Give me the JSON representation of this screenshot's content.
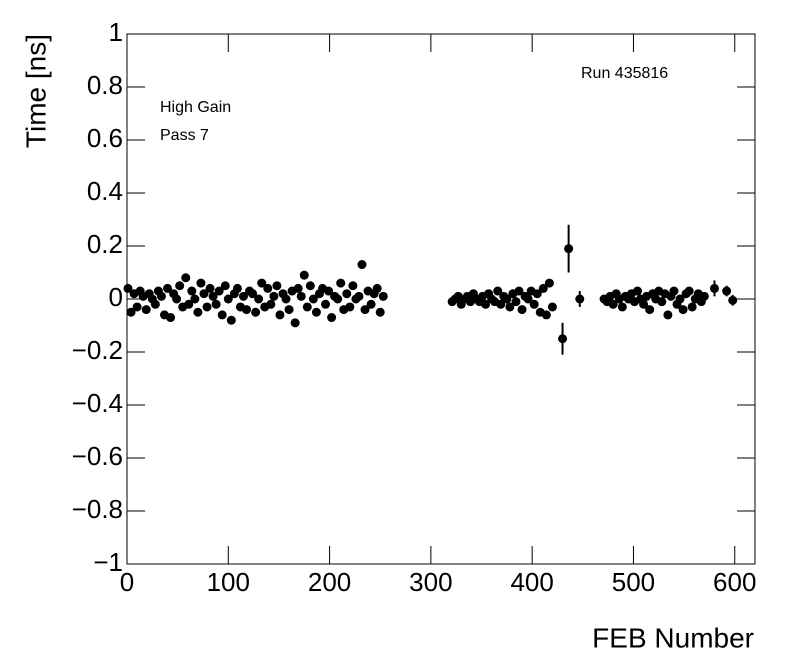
{
  "chart_data": {
    "type": "scatter",
    "xlabel": "FEB Number",
    "ylabel": "Time [ns]",
    "annotations": [
      "High Gain",
      "Pass 7",
      "Run 435816"
    ],
    "color": "#000000",
    "xlim": [
      0,
      620
    ],
    "ylim": [
      -1,
      1
    ],
    "xticks": [
      0,
      100,
      200,
      300,
      400,
      500,
      600
    ],
    "yticks": [
      {
        "value": -1,
        "label": "−1"
      },
      {
        "value": -0.8,
        "label": "−0.8"
      },
      {
        "value": -0.6,
        "label": "−0.6"
      },
      {
        "value": -0.4,
        "label": "−0.4"
      },
      {
        "value": -0.2,
        "label": "−0.2"
      },
      0,
      0.2,
      0.4,
      0.6,
      0.8,
      1
    ],
    "x": [
      1,
      4,
      7,
      10,
      13,
      16,
      19,
      22,
      25,
      28,
      31,
      34,
      37,
      40,
      43,
      46,
      49,
      52,
      55,
      58,
      61,
      64,
      67,
      70,
      73,
      76,
      79,
      82,
      85,
      88,
      91,
      94,
      97,
      100,
      103,
      106,
      109,
      112,
      115,
      118,
      121,
      124,
      127,
      130,
      133,
      136,
      139,
      142,
      145,
      148,
      151,
      154,
      157,
      160,
      163,
      166,
      169,
      172,
      175,
      178,
      181,
      184,
      187,
      190,
      193,
      196,
      199,
      202,
      205,
      208,
      211,
      214,
      217,
      220,
      223,
      226,
      229,
      232,
      235,
      238,
      241,
      244,
      247,
      250,
      253,
      321,
      324,
      327,
      330,
      333,
      336,
      339,
      342,
      345,
      348,
      351,
      354,
      357,
      360,
      363,
      366,
      369,
      372,
      375,
      378,
      381,
      384,
      387,
      390,
      393,
      396,
      399,
      402,
      405,
      408,
      411,
      414,
      417,
      420,
      430,
      436,
      447,
      471,
      474,
      477,
      480,
      483,
      486,
      489,
      492,
      495,
      498,
      501,
      504,
      507,
      510,
      513,
      516,
      519,
      522,
      525,
      528,
      531,
      534,
      537,
      540,
      543,
      546,
      549,
      552,
      555,
      558,
      561,
      564,
      567,
      570,
      580,
      592,
      598
    ],
    "values": [
      0.04,
      -0.05,
      0.02,
      -0.03,
      0.03,
      0.01,
      -0.04,
      0.02,
      0.0,
      -0.02,
      0.03,
      0.01,
      -0.06,
      0.04,
      -0.07,
      0.02,
      0.0,
      0.05,
      -0.03,
      0.08,
      -0.02,
      0.03,
      0.0,
      -0.05,
      0.06,
      0.02,
      -0.03,
      0.04,
      0.01,
      -0.02,
      0.03,
      -0.06,
      0.05,
      0.0,
      -0.08,
      0.02,
      0.04,
      -0.03,
      0.01,
      -0.04,
      0.03,
      0.02,
      -0.05,
      0.0,
      0.06,
      -0.03,
      0.04,
      -0.02,
      0.01,
      0.05,
      -0.06,
      0.02,
      0.0,
      -0.04,
      0.03,
      -0.09,
      0.04,
      0.01,
      0.09,
      -0.03,
      0.05,
      0.0,
      -0.05,
      0.02,
      0.04,
      -0.02,
      0.03,
      -0.07,
      0.01,
      0.0,
      0.06,
      -0.04,
      0.02,
      -0.03,
      0.05,
      0.0,
      0.01,
      0.13,
      -0.04,
      0.03,
      -0.02,
      0.02,
      0.04,
      -0.05,
      0.01,
      -0.01,
      0.0,
      0.01,
      -0.02,
      0.0,
      0.01,
      -0.01,
      0.02,
      0.0,
      -0.01,
      0.01,
      -0.02,
      0.02,
      0.0,
      -0.01,
      0.03,
      -0.02,
      0.01,
      0.0,
      -0.03,
      0.02,
      -0.01,
      0.03,
      -0.04,
      0.01,
      0.0,
      0.03,
      -0.02,
      0.02,
      -0.05,
      0.04,
      -0.06,
      0.06,
      -0.03,
      -0.15,
      0.19,
      0.0,
      0.0,
      -0.01,
      0.01,
      -0.02,
      0.02,
      0.0,
      -0.03,
      0.01,
      0.0,
      0.02,
      -0.01,
      0.03,
      0.0,
      -0.02,
      0.01,
      -0.04,
      0.02,
      0.0,
      0.03,
      -0.01,
      0.02,
      -0.06,
      0.01,
      0.03,
      -0.02,
      0.0,
      -0.04,
      0.02,
      0.03,
      -0.03,
      0.0,
      0.02,
      -0.01,
      0.01,
      0.04,
      0.03,
      -0.005
    ],
    "errors": [
      0.01,
      0.01,
      0.01,
      0.01,
      0.01,
      0.01,
      0.01,
      0.01,
      0.01,
      0.01,
      0.01,
      0.01,
      0.01,
      0.01,
      0.01,
      0.01,
      0.01,
      0.01,
      0.01,
      0.01,
      0.01,
      0.01,
      0.01,
      0.01,
      0.01,
      0.01,
      0.01,
      0.01,
      0.01,
      0.01,
      0.01,
      0.01,
      0.01,
      0.01,
      0.01,
      0.01,
      0.01,
      0.01,
      0.01,
      0.01,
      0.01,
      0.01,
      0.01,
      0.01,
      0.01,
      0.01,
      0.01,
      0.01,
      0.01,
      0.01,
      0.01,
      0.01,
      0.01,
      0.01,
      0.01,
      0.01,
      0.01,
      0.01,
      0.01,
      0.01,
      0.01,
      0.01,
      0.01,
      0.01,
      0.01,
      0.01,
      0.01,
      0.01,
      0.01,
      0.01,
      0.01,
      0.01,
      0.01,
      0.01,
      0.01,
      0.01,
      0.01,
      0.01,
      0.01,
      0.01,
      0.01,
      0.01,
      0.01,
      0.01,
      0.01,
      0.01,
      0.01,
      0.01,
      0.01,
      0.01,
      0.01,
      0.01,
      0.01,
      0.01,
      0.01,
      0.01,
      0.01,
      0.01,
      0.01,
      0.01,
      0.01,
      0.01,
      0.01,
      0.01,
      0.01,
      0.01,
      0.01,
      0.01,
      0.01,
      0.01,
      0.01,
      0.01,
      0.01,
      0.01,
      0.01,
      0.01,
      0.01,
      0.01,
      0.01,
      0.06,
      0.09,
      0.03,
      0.01,
      0.01,
      0.01,
      0.01,
      0.01,
      0.01,
      0.01,
      0.01,
      0.01,
      0.01,
      0.01,
      0.01,
      0.01,
      0.01,
      0.01,
      0.01,
      0.01,
      0.01,
      0.01,
      0.01,
      0.01,
      0.01,
      0.01,
      0.01,
      0.01,
      0.01,
      0.01,
      0.01,
      0.01,
      0.01,
      0.01,
      0.01,
      0.01,
      0.01,
      0.03,
      0.02,
      0.02
    ]
  }
}
